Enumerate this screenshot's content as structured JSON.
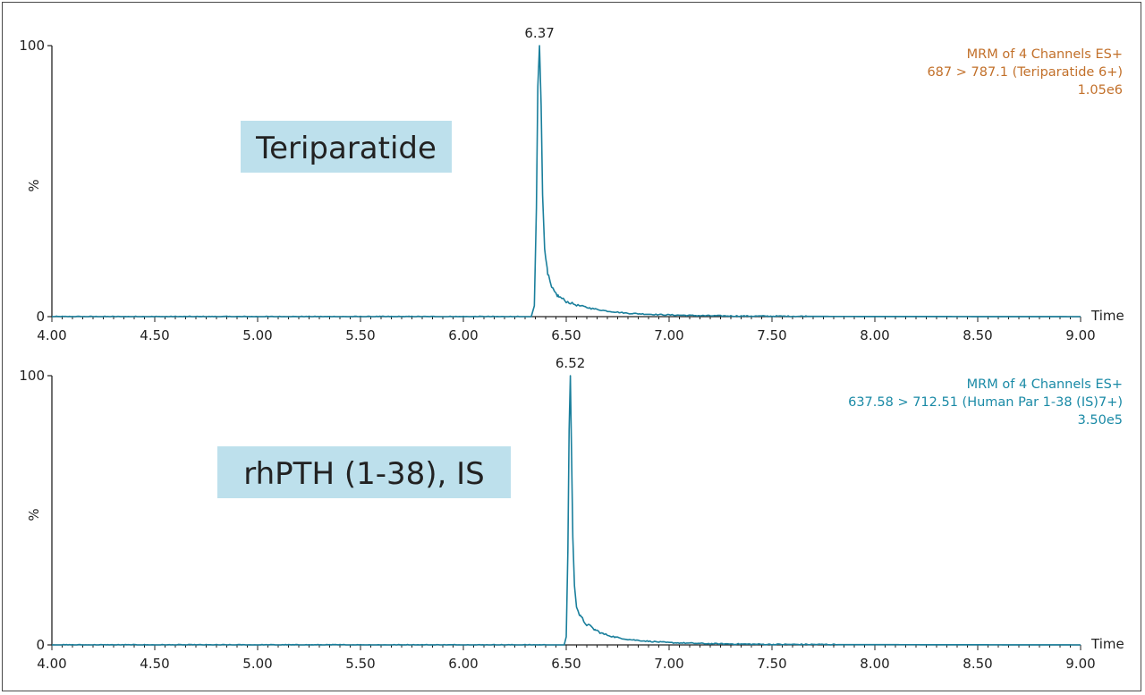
{
  "colors": {
    "trace": "#1a7f9c",
    "info_orange": "#c2702a",
    "info_teal": "#1a8aa6",
    "label_box": "#bde0ec",
    "axis": "#222222"
  },
  "chart_data": [
    {
      "type": "line",
      "compound_label": "Teriparatide",
      "info_lines": [
        "MRM of 4 Channels ES+",
        "687 > 787.1 (Teriparatide 6+)",
        "1.05e6"
      ],
      "info_color": "orange",
      "peak_time_label": "6.37",
      "peak_time": 6.37,
      "xlabel": "Time",
      "ylabel": "%",
      "y_ticks": [
        "100",
        "0"
      ],
      "x_ticks": [
        "4.00",
        "4.50",
        "5.00",
        "5.50",
        "6.00",
        "6.50",
        "7.00",
        "7.50",
        "8.00",
        "8.50",
        "9.00"
      ],
      "xlim": [
        4.0,
        9.0
      ],
      "ylim": [
        0,
        100
      ],
      "x": [
        4.0,
        6.33,
        6.345,
        6.355,
        6.362,
        6.37,
        6.378,
        6.385,
        6.395,
        6.41,
        6.43,
        6.46,
        6.5,
        6.55,
        6.62,
        6.7,
        6.8,
        6.95,
        7.1,
        7.3,
        7.6,
        9.0
      ],
      "y": [
        0,
        0,
        4,
        40,
        85,
        100,
        78,
        45,
        25,
        15,
        10,
        7.5,
        5.5,
        4.2,
        3,
        2,
        1.2,
        0.7,
        0.4,
        0.2,
        0.1,
        0
      ]
    },
    {
      "type": "line",
      "compound_label": "rhPTH (1-38), IS",
      "info_lines": [
        "MRM of 4 Channels ES+",
        "637.58 > 712.51 (Human Par 1-38 (IS)7+)",
        "3.50e5"
      ],
      "info_color": "teal",
      "peak_time_label": "6.52",
      "peak_time": 6.52,
      "xlabel": "Time",
      "ylabel": "%",
      "y_ticks": [
        "100",
        "0"
      ],
      "x_ticks": [
        "4.00",
        "4.50",
        "5.00",
        "5.50",
        "6.00",
        "6.50",
        "7.00",
        "7.50",
        "8.00",
        "8.50",
        "9.00"
      ],
      "xlim": [
        4.0,
        9.0
      ],
      "ylim": [
        0,
        100
      ],
      "x": [
        4.0,
        6.49,
        6.5,
        6.508,
        6.514,
        6.52,
        6.526,
        6.532,
        6.54,
        6.55,
        6.57,
        6.6,
        6.64,
        6.68,
        6.74,
        6.8,
        6.9,
        7.0,
        7.2,
        7.5,
        9.0
      ],
      "y": [
        0,
        0,
        3,
        35,
        80,
        100,
        70,
        40,
        22,
        14,
        10,
        7.5,
        5.5,
        4,
        2.8,
        2,
        1.3,
        0.8,
        0.4,
        0.15,
        0
      ]
    }
  ]
}
